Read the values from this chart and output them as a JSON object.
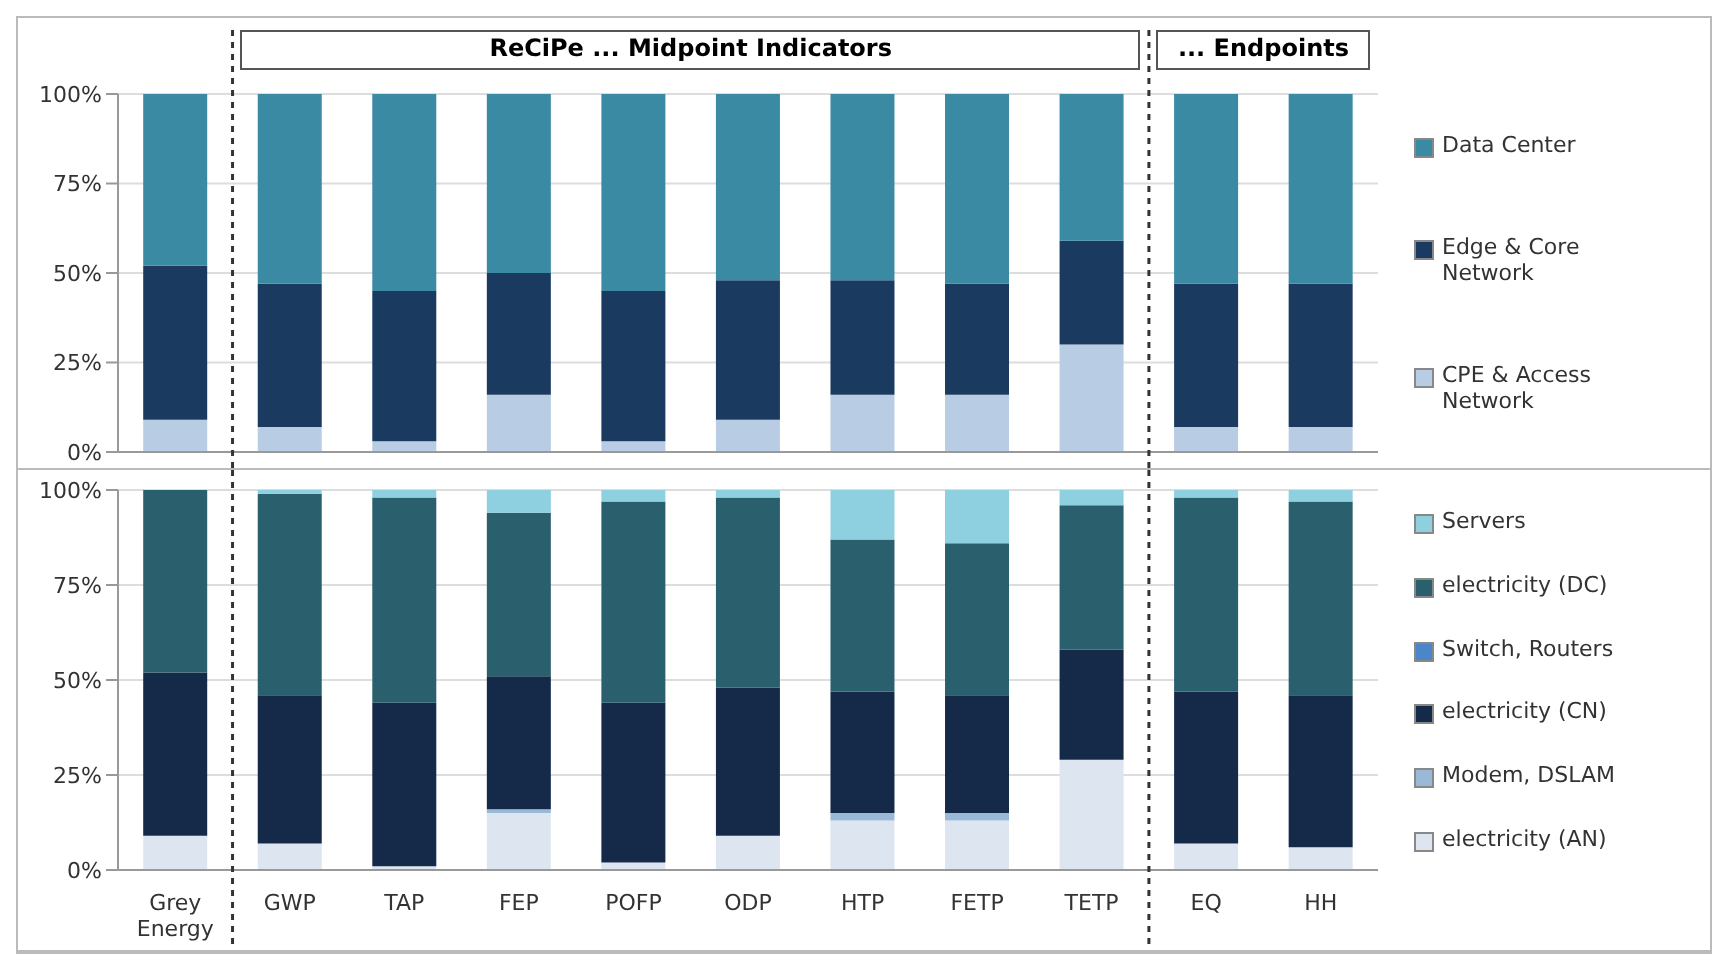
{
  "chart_data": [
    {
      "type": "bar",
      "stacked": true,
      "categories": [
        null,
        null,
        null,
        null,
        null,
        null,
        null,
        null,
        null,
        null,
        null
      ],
      "series": [
        {
          "name": "CPE & Access Network",
          "color": "#b8cce4",
          "values": [
            9,
            7,
            3,
            16,
            3,
            9,
            16,
            16,
            30,
            7,
            7
          ]
        },
        {
          "name": "Edge & Core Network",
          "color": "#1b3a60",
          "values": [
            43,
            40,
            42,
            34,
            42,
            39,
            32,
            31,
            29,
            40,
            40
          ]
        },
        {
          "name": "Data Center",
          "color": "#3a8aa3",
          "values": [
            48,
            53,
            55,
            50,
            55,
            52,
            52,
            53,
            41,
            53,
            53
          ]
        }
      ],
      "ylim": [
        0,
        100
      ],
      "yticks": [
        {
          "value": 0,
          "label": "0%"
        },
        {
          "value": 25,
          "label": "25%"
        },
        {
          "value": 50,
          "label": "50%"
        },
        {
          "value": 75,
          "label": "75%"
        },
        {
          "value": 100,
          "label": "100%"
        }
      ],
      "grid": "y",
      "legend": "right",
      "tick_labels": "y",
      "annotations": [
        "ReCiPe ... Midpoint Indicators",
        "... Endpoints"
      ]
    },
    {
      "type": "bar",
      "stacked": true,
      "categories": [
        "Grey Energy",
        "GWP",
        "TAP",
        "FEP",
        "POFP",
        "ODP",
        "HTP",
        "FETP",
        "TETP",
        "EQ",
        "HH"
      ],
      "series": [
        {
          "name": "electricity (AN)",
          "color": "#dde6f0",
          "values": [
            9,
            7,
            1,
            15,
            2,
            9,
            13,
            13,
            29,
            7,
            6
          ]
        },
        {
          "name": "Modem, DSLAM",
          "color": "#9ab8d8",
          "values": [
            0,
            0,
            0,
            1,
            0,
            0,
            2,
            2,
            0,
            0,
            0
          ]
        },
        {
          "name": "electricity (CN)",
          "color": "#142a48",
          "values": [
            43,
            39,
            43,
            35,
            42,
            39,
            32,
            31,
            29,
            40,
            40
          ]
        },
        {
          "name": "Switch, Routers",
          "color": "#4a86c8",
          "values": [
            0,
            0,
            0,
            0,
            0,
            0,
            0,
            0,
            0,
            0,
            0
          ]
        },
        {
          "name": "electricity (DC)",
          "color": "#2a5f6e",
          "values": [
            48,
            53,
            54,
            43,
            53,
            50,
            40,
            40,
            38,
            51,
            51
          ]
        },
        {
          "name": "Servers",
          "color": "#8ecfe0",
          "values": [
            0,
            1,
            2,
            6,
            3,
            2,
            13,
            14,
            4,
            2,
            3
          ]
        }
      ],
      "ylim": [
        0,
        100
      ],
      "yticks": [
        {
          "value": 0,
          "label": "0%"
        },
        {
          "value": 25,
          "label": "25%"
        },
        {
          "value": 50,
          "label": "50%"
        },
        {
          "value": 75,
          "label": "75%"
        },
        {
          "value": 100,
          "label": "100%"
        }
      ],
      "grid": "y",
      "legend": "right"
    }
  ]
}
